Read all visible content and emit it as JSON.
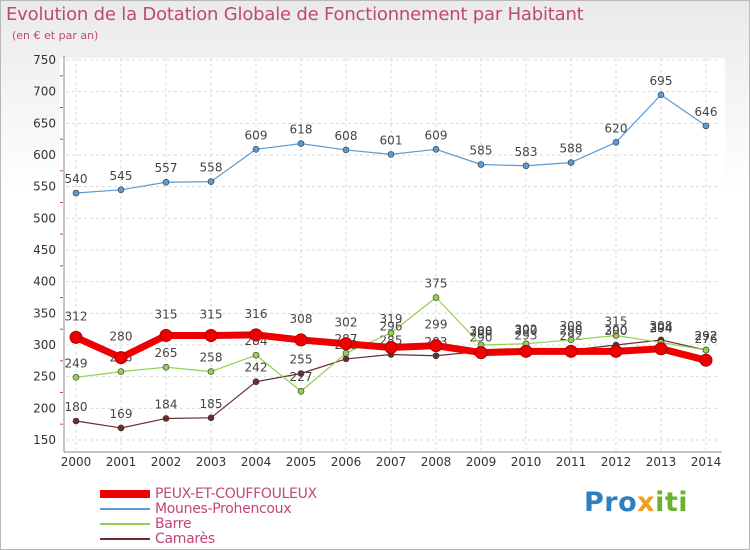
{
  "chart_data": {
    "type": "line",
    "title": "Evolution de la Dotation Globale de Fonctionnement par Habitant",
    "subtitle": "(en € et par an)",
    "xlabel": "",
    "ylabel": "",
    "x": [
      "2000",
      "2001",
      "2002",
      "2003",
      "2004",
      "2005",
      "2006",
      "2007",
      "2008",
      "2009",
      "2010",
      "2011",
      "2012",
      "2013",
      "2014"
    ],
    "ylim": [
      150,
      750
    ],
    "yticks": [
      150,
      200,
      250,
      300,
      350,
      400,
      450,
      500,
      550,
      600,
      650,
      700,
      750
    ],
    "grid": true,
    "legend_position": "bottom-left",
    "series": [
      {
        "name": "PEUX-ET-COUFFOULEUX",
        "color": "#ee0000",
        "values": [
          312,
          280,
          315,
          315,
          316,
          308,
          302,
          296,
          299,
          288,
          290,
          290,
          290,
          294,
          276
        ]
      },
      {
        "name": "Mounes-Prohencoux",
        "color": "#5b9bd5",
        "values": [
          540,
          545,
          557,
          558,
          609,
          618,
          608,
          601,
          609,
          585,
          583,
          588,
          620,
          695,
          646
        ]
      },
      {
        "name": "Barre",
        "color": "#92d050",
        "values": [
          249,
          258,
          265,
          258,
          284,
          227,
          287,
          319,
          375,
          300,
          302,
          308,
          315,
          304,
          292
        ]
      },
      {
        "name": "Camarès",
        "color": "#6b2d2d",
        "values": [
          180,
          169,
          184,
          185,
          242,
          255,
          278,
          285,
          283,
          290,
          293,
          292,
          300,
          308,
          292
        ]
      }
    ]
  },
  "logo": {
    "part1": "Pro",
    "part2": "x",
    "part3": "iti"
  }
}
